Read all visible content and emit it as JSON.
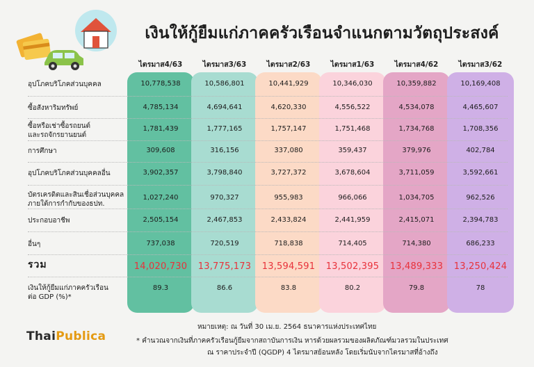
{
  "title": "เงินให้กู้ยืมแก่ภาคครัวเรือนจำแนกตามวัตถุประสงค์",
  "colors": {
    "col1": "#62c0a1",
    "col2": "#a8dcd1",
    "col3": "#fcdac6",
    "col4": "#fbd3dc",
    "col5": "#e4a6c6",
    "col6": "#cfb0e6",
    "total_value": "#e8313a",
    "logo_accent": "#e49a12"
  },
  "columns": [
    "ไตรมาส4/63",
    "ไตรมาส3/63",
    "ไตรมาส2/63",
    "ไตรมาส1/63",
    "ไตรมาส4/62",
    "ไตรมาส3/62"
  ],
  "rows": [
    {
      "label": "อุปโภคบริโภคส่วนบุคคล",
      "values": [
        "10,778,538",
        "10,586,801",
        "10,441,929",
        "10,346,030",
        "10,359,882",
        "10,169,408"
      ]
    },
    {
      "label": "ซื้อสังหาริมทรัพย์",
      "values": [
        "4,785,134",
        "4,694,641",
        "4,620,330",
        "4,556,522",
        "4,534,078",
        "4,465,607"
      ]
    },
    {
      "label": "ซื้อหรือเช่าซื้อรถยนต์\nและรถจักรยานยนต์",
      "values": [
        "1,781,439",
        "1,777,165",
        "1,757,147",
        "1,751,468",
        "1,734,768",
        "1,708,356"
      ]
    },
    {
      "label": "การศึกษา",
      "values": [
        "309,608",
        "316,156",
        "337,080",
        "359,437",
        "379,976",
        "402,784"
      ]
    },
    {
      "label": "อุปโภคบริโภคส่วนบุคคลอื่น",
      "values": [
        "3,902,357",
        "3,798,840",
        "3,727,372",
        "3,678,604",
        "3,711,059",
        "3,592,661"
      ]
    },
    {
      "label": "บัตรเครดิตและสินเชื่อส่วนบุคคล\nภายใต้การกำกับของธปท.",
      "values": [
        "1,027,240",
        "970,327",
        "955,983",
        "966,066",
        "1,034,705",
        "962,526"
      ]
    },
    {
      "label": "ประกอบอาชีพ",
      "values": [
        "2,505,154",
        "2,467,853",
        "2,433,824",
        "2,441,959",
        "2,415,071",
        "2,394,783"
      ]
    },
    {
      "label": "อื่นๆ",
      "values": [
        "737,038",
        "720,519",
        "718,838",
        "714,405",
        "714,380",
        "686,233"
      ]
    }
  ],
  "total": {
    "label": "รวม",
    "values": [
      "14,020,730",
      "13,775,173",
      "13,594,591",
      "13,502,395",
      "13,489,333",
      "13,250,424"
    ]
  },
  "gdp": {
    "label": "เงินให้กู้ยืมแก่ภาคครัวเรือน\nต่อ GDP (%)*",
    "values": [
      "89.3",
      "86.6",
      "83.8",
      "80.2",
      "79.8",
      "78"
    ]
  },
  "logo": {
    "part1": "Thai",
    "part2": "Publica"
  },
  "notes": [
    "หมายเหตุ: ณ วันที่ 30 เม.ย. 2564 ธนาคารแห่งประเทศไทย",
    "* คำนวณจากเงินที่ภาคครัวเรือนกู้ยืมจากสถาบันการเงิน หารด้วยผลรวมของผลิตภัณฑ์มวลรวมในประเทศ",
    "ณ ราคาประจำปี (QGDP) 4 ไตรมาสย้อนหลัง โดยเริ่มนับจากไตรมาสที่อ้างถึง"
  ],
  "illustration_icons": [
    "credit-card-icon",
    "house-icon",
    "car-icon"
  ]
}
